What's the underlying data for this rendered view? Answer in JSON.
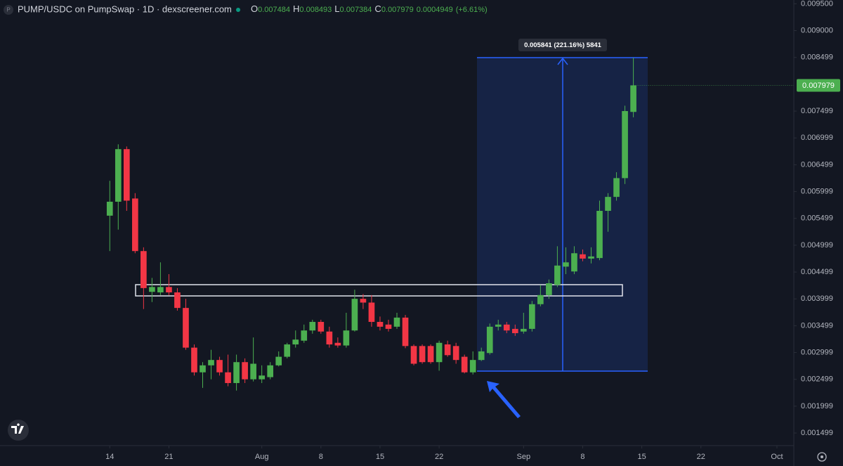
{
  "header": {
    "icon": "P",
    "title": "PUMP/USDC on PumpSwap · 1D · dexscreener.com",
    "o": "O",
    "h": "H",
    "l": "L",
    "c": "C",
    "change": 0.0004949,
    "change_pct": "(+6.61%)"
  },
  "chart_data": {
    "type": "candlestick",
    "annotations": {
      "measure_label": "0.005841 (221.16%) 5841"
    },
    "up_color": "#4caf50",
    "down_color": "#f23645",
    "grid": false,
    "x": [
      "07-14",
      "07-15",
      "07-16",
      "07-17",
      "07-18",
      "07-19",
      "07-20",
      "07-21",
      "07-22",
      "07-23",
      "07-24",
      "07-25",
      "07-26",
      "07-27",
      "07-28",
      "07-29",
      "07-30",
      "07-31",
      "08-01",
      "08-02",
      "08-03",
      "08-04",
      "08-05",
      "08-06",
      "08-07",
      "08-08",
      "08-09",
      "08-10",
      "08-11",
      "08-12",
      "08-13",
      "08-14",
      "08-15",
      "08-16",
      "08-17",
      "08-18",
      "08-19",
      "08-20",
      "08-21",
      "08-22",
      "08-23",
      "08-24",
      "08-25",
      "08-26",
      "08-27",
      "08-28",
      "08-29",
      "08-30",
      "08-31",
      "09-01",
      "09-02",
      "09-03",
      "09-04",
      "09-05",
      "09-06",
      "09-07",
      "09-08",
      "09-09",
      "09-10",
      "09-11",
      "09-12",
      "09-13",
      "09-14"
    ],
    "open": [
      0.00555,
      0.00581,
      0.00679,
      0.00587,
      0.00489,
      0.00413,
      0.00412,
      0.00422,
      0.00412,
      0.00383,
      0.00309,
      0.00263,
      0.00276,
      0.00286,
      0.00263,
      0.00243,
      0.00282,
      0.0025,
      0.0025,
      0.00254,
      0.00276,
      0.00292,
      0.00315,
      0.00322,
      0.00341,
      0.00357,
      0.00339,
      0.00318,
      0.00313,
      0.00341,
      0.004,
      0.00393,
      0.00357,
      0.00352,
      0.00348,
      0.00365,
      0.00312,
      0.00312,
      0.00312,
      0.00282,
      0.00315,
      0.00312,
      0.00292,
      0.00263,
      0.00286,
      0.00299,
      0.00348,
      0.00352,
      0.00344,
      0.00339,
      0.00344,
      0.0039,
      0.00407,
      0.00426,
      0.0046,
      0.00451,
      0.00483,
      0.00475,
      0.00476,
      0.00564,
      0.0059,
      0.00625,
      0.007484
    ],
    "high": [
      0.0062,
      0.00688,
      0.00684,
      0.00597,
      0.00496,
      0.00439,
      0.00468,
      0.00446,
      0.0042,
      0.004,
      0.00315,
      0.00282,
      0.00305,
      0.00292,
      0.00296,
      0.00296,
      0.00289,
      0.00328,
      0.00276,
      0.00282,
      0.00302,
      0.00318,
      0.00341,
      0.00352,
      0.00361,
      0.00361,
      0.00348,
      0.00328,
      0.00374,
      0.00417,
      0.00409,
      0.00407,
      0.00367,
      0.00361,
      0.00374,
      0.0037,
      0.00315,
      0.00315,
      0.00315,
      0.00322,
      0.00322,
      0.00318,
      0.00296,
      0.00302,
      0.00309,
      0.00354,
      0.00361,
      0.00357,
      0.00352,
      0.00374,
      0.00396,
      0.00426,
      0.00436,
      0.00498,
      0.00496,
      0.00498,
      0.00492,
      0.00496,
      0.00583,
      0.00597,
      0.00636,
      0.0076,
      0.008493
    ],
    "low": [
      0.00489,
      0.00529,
      0.00564,
      0.00485,
      0.00381,
      0.00394,
      0.00407,
      0.00407,
      0.00378,
      0.00305,
      0.00257,
      0.00234,
      0.0025,
      0.00257,
      0.00237,
      0.00229,
      0.00243,
      0.00246,
      0.00243,
      0.0025,
      0.00274,
      0.00289,
      0.00309,
      0.00318,
      0.00335,
      0.00335,
      0.00309,
      0.00309,
      0.00309,
      0.00339,
      0.00381,
      0.00348,
      0.00341,
      0.00339,
      0.00344,
      0.00308,
      0.00276,
      0.00279,
      0.00279,
      0.00266,
      0.00292,
      0.00279,
      0.00261,
      0.00259,
      0.00284,
      0.00296,
      0.00341,
      0.00336,
      0.00331,
      0.00335,
      0.00339,
      0.00386,
      0.004,
      0.00422,
      0.00446,
      0.00446,
      0.0047,
      0.00466,
      0.00472,
      0.00525,
      0.00583,
      0.00614,
      0.007384
    ],
    "close": [
      0.00581,
      0.00679,
      0.00583,
      0.00489,
      0.0042,
      0.00422,
      0.00422,
      0.00412,
      0.00383,
      0.00309,
      0.00263,
      0.00276,
      0.00286,
      0.00263,
      0.00243,
      0.00282,
      0.0025,
      0.00279,
      0.00257,
      0.00276,
      0.00292,
      0.00315,
      0.00324,
      0.00341,
      0.00357,
      0.00339,
      0.00315,
      0.00313,
      0.00341,
      0.004,
      0.00393,
      0.00357,
      0.00348,
      0.00344,
      0.00365,
      0.00312,
      0.00279,
      0.00282,
      0.00282,
      0.00318,
      0.00295,
      0.00286,
      0.00263,
      0.00286,
      0.00302,
      0.00348,
      0.00352,
      0.00341,
      0.00336,
      0.00344,
      0.0039,
      0.00407,
      0.00429,
      0.00462,
      0.00468,
      0.00485,
      0.00475,
      0.00479,
      0.00564,
      0.0059,
      0.00625,
      0.0075,
      0.007979
    ],
    "xlim": [
      "07-01",
      "10-03"
    ],
    "xticks": [
      {
        "value": "07-14",
        "label": "14"
      },
      {
        "value": "07-21",
        "label": "21"
      },
      {
        "value": "08-01",
        "label": "Aug"
      },
      {
        "value": "08-08",
        "label": "8"
      },
      {
        "value": "08-15",
        "label": "15"
      },
      {
        "value": "08-22",
        "label": "22"
      },
      {
        "value": "09-01",
        "label": "Sep"
      },
      {
        "value": "09-08",
        "label": "8"
      },
      {
        "value": "09-15",
        "label": "15"
      },
      {
        "value": "09-22",
        "label": "22"
      },
      {
        "value": "10-01",
        "label": "Oct"
      }
    ],
    "ylim": [
      0.00129,
      0.00957
    ],
    "yticks": [
      {
        "value": 0.0095,
        "label": "0.009500"
      },
      {
        "value": 0.009,
        "label": "0.009000"
      },
      0.008499,
      0.007499,
      0.006999,
      0.006499,
      0.005999,
      0.005499,
      0.004999,
      0.004499,
      0.003999,
      0.003499,
      0.002999,
      0.002499,
      0.001999,
      0.001499
    ]
  }
}
